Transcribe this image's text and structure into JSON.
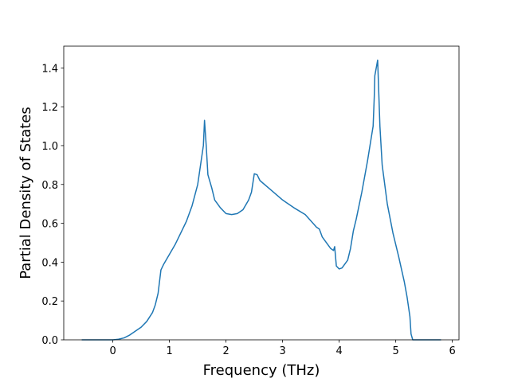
{
  "chart_data": {
    "type": "line",
    "x_label": "Frequency (THz)",
    "y_label": "Partial Density of States",
    "xlim": [
      -0.8675,
      6.1175
    ],
    "ylim": [
      0,
      1.512
    ],
    "xticks": [
      0,
      1,
      2,
      3,
      4,
      5,
      6
    ],
    "yticks": [
      {
        "value": 0,
        "label": "0.0"
      },
      0.2,
      0.4,
      0.6,
      0.8,
      {
        "value": 1,
        "label": "1.0"
      },
      1.2,
      1.4
    ],
    "series": [
      {
        "color": "#1f77b4",
        "x": [
          -0.55,
          0,
          0.1,
          0.2,
          0.3,
          0.4,
          0.5,
          0.6,
          0.7,
          0.75,
          0.8,
          0.85,
          0.9,
          1.0,
          1.1,
          1.2,
          1.3,
          1.4,
          1.5,
          1.55,
          1.6,
          1.62,
          1.65,
          1.68,
          1.75,
          1.8,
          1.9,
          2.0,
          2.1,
          2.2,
          2.3,
          2.4,
          2.45,
          2.5,
          2.55,
          2.6,
          2.8,
          3.0,
          3.2,
          3.4,
          3.6,
          3.65,
          3.7,
          3.8,
          3.85,
          3.9,
          3.92,
          3.95,
          4.0,
          4.05,
          4.1,
          4.15,
          4.2,
          4.25,
          4.3,
          4.4,
          4.5,
          4.55,
          4.6,
          4.62,
          4.63,
          4.68,
          4.72,
          4.76,
          4.85,
          4.95,
          5.05,
          5.15,
          5.2,
          5.25,
          5.27,
          5.3,
          5.8
        ],
        "values": [
          0,
          0,
          0.003,
          0.01,
          0.025,
          0.045,
          0.065,
          0.095,
          0.14,
          0.18,
          0.24,
          0.36,
          0.39,
          0.44,
          0.49,
          0.55,
          0.61,
          0.69,
          0.8,
          0.9,
          1.0,
          1.13,
          1.0,
          0.85,
          0.78,
          0.72,
          0.68,
          0.65,
          0.645,
          0.65,
          0.67,
          0.72,
          0.76,
          0.855,
          0.85,
          0.82,
          0.77,
          0.72,
          0.68,
          0.645,
          0.58,
          0.57,
          0.53,
          0.49,
          0.47,
          0.46,
          0.48,
          0.38,
          0.365,
          0.37,
          0.39,
          0.41,
          0.47,
          0.56,
          0.62,
          0.76,
          0.92,
          1.01,
          1.1,
          1.25,
          1.36,
          1.44,
          1.1,
          0.9,
          0.7,
          0.55,
          0.43,
          0.3,
          0.22,
          0.12,
          0.03,
          0,
          0
        ]
      }
    ]
  }
}
